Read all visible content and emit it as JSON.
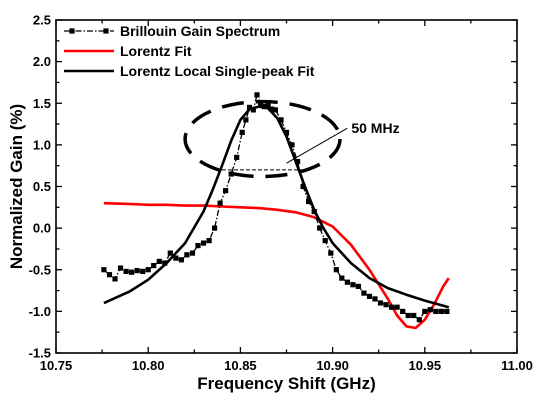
{
  "chart_data": {
    "type": "line",
    "title": "",
    "xlabel": "Frequency Shift (GHz)",
    "ylabel": "Normalized Gain (%)",
    "xlim": [
      10.75,
      11.0
    ],
    "ylim": [
      -1.5,
      2.5
    ],
    "xticks": [
      10.75,
      10.8,
      10.85,
      10.9,
      10.95,
      11.0
    ],
    "xtick_labels": [
      "10.75",
      "10.80",
      "10.85",
      "10.90",
      "10.95",
      "11.00"
    ],
    "yticks": [
      -1.5,
      -1.0,
      -0.5,
      0.0,
      0.5,
      1.0,
      1.5,
      2.0,
      2.5
    ],
    "ytick_labels": [
      "-1.5",
      "-1.0",
      "-0.5",
      "0.0",
      "0.5",
      "1.0",
      "1.5",
      "2.0",
      "2.5"
    ],
    "grid": false,
    "legend_position": "top-left",
    "series": [
      {
        "name": "Brillouin Gain Spectrum",
        "color": "#000000",
        "style": "dash-dot with square markers",
        "x": [
          10.776,
          10.779,
          10.782,
          10.785,
          10.788,
          10.791,
          10.794,
          10.797,
          10.8,
          10.803,
          10.806,
          10.809,
          10.812,
          10.815,
          10.818,
          10.821,
          10.824,
          10.827,
          10.83,
          10.833,
          10.836,
          10.839,
          10.842,
          10.845,
          10.848,
          10.851,
          10.853,
          10.855,
          10.857,
          10.859,
          10.861,
          10.863,
          10.865,
          10.867,
          10.869,
          10.872,
          10.875,
          10.878,
          10.881,
          10.884,
          10.887,
          10.89,
          10.893,
          10.896,
          10.899,
          10.902,
          10.905,
          10.908,
          10.911,
          10.914,
          10.917,
          10.92,
          10.923,
          10.926,
          10.929,
          10.932,
          10.935,
          10.938,
          10.941,
          10.944,
          10.947,
          10.95,
          10.953,
          10.956,
          10.959,
          10.962
        ],
        "y": [
          -0.5,
          -0.56,
          -0.61,
          -0.48,
          -0.52,
          -0.53,
          -0.51,
          -0.52,
          -0.5,
          -0.45,
          -0.4,
          -0.42,
          -0.3,
          -0.36,
          -0.38,
          -0.32,
          -0.3,
          -0.21,
          -0.18,
          -0.15,
          0.0,
          0.3,
          0.45,
          0.65,
          0.85,
          1.15,
          1.3,
          1.45,
          1.42,
          1.6,
          1.48,
          1.46,
          1.47,
          1.43,
          1.42,
          1.3,
          1.15,
          1.0,
          0.8,
          0.5,
          0.32,
          0.2,
          0.0,
          -0.15,
          -0.3,
          -0.5,
          -0.6,
          -0.65,
          -0.68,
          -0.7,
          -0.78,
          -0.82,
          -0.85,
          -0.9,
          -0.92,
          -0.95,
          -0.95,
          -1.0,
          -1.05,
          -1.05,
          -1.1,
          -1.0,
          -0.98,
          -1.0,
          -1.0,
          -1.0
        ]
      },
      {
        "name": "Lorentz Fit",
        "color": "#ff0000",
        "style": "solid",
        "x": [
          10.776,
          10.79,
          10.8,
          10.81,
          10.82,
          10.83,
          10.84,
          10.85,
          10.86,
          10.87,
          10.88,
          10.89,
          10.9,
          10.91,
          10.92,
          10.93,
          10.935,
          10.94,
          10.945,
          10.95,
          10.955,
          10.96,
          10.963
        ],
        "y": [
          0.3,
          0.29,
          0.28,
          0.28,
          0.27,
          0.27,
          0.26,
          0.25,
          0.24,
          0.22,
          0.19,
          0.13,
          0.02,
          -0.2,
          -0.5,
          -0.85,
          -1.05,
          -1.18,
          -1.2,
          -1.1,
          -0.92,
          -0.7,
          -0.6
        ]
      },
      {
        "name": "Lorentz Local Single-peak Fit",
        "color": "#000000",
        "style": "solid",
        "x": [
          10.776,
          10.79,
          10.8,
          10.81,
          10.82,
          10.83,
          10.835,
          10.84,
          10.845,
          10.85,
          10.855,
          10.86,
          10.865,
          10.87,
          10.875,
          10.88,
          10.885,
          10.89,
          10.895,
          10.9,
          10.91,
          10.92,
          10.93,
          10.94,
          10.95,
          10.963
        ],
        "y": [
          -0.9,
          -0.76,
          -0.62,
          -0.42,
          -0.18,
          0.2,
          0.46,
          0.75,
          1.05,
          1.3,
          1.43,
          1.46,
          1.44,
          1.32,
          1.1,
          0.8,
          0.5,
          0.22,
          0.0,
          -0.18,
          -0.42,
          -0.6,
          -0.72,
          -0.8,
          -0.87,
          -0.95
        ]
      }
    ],
    "annotations": {
      "width_label": "50 MHz",
      "ellipse": {
        "cx": 10.862,
        "cy": 1.07,
        "rx": 0.042,
        "ry": 0.45,
        "style": "dashed"
      },
      "width_line": {
        "x1": 10.84,
        "x2": 10.886,
        "y": 0.7,
        "style": "dashed"
      },
      "pointer_from": {
        "x": 10.875,
        "y": 0.78
      },
      "pointer_to": {
        "x": 10.908,
        "y": 1.2
      }
    }
  }
}
